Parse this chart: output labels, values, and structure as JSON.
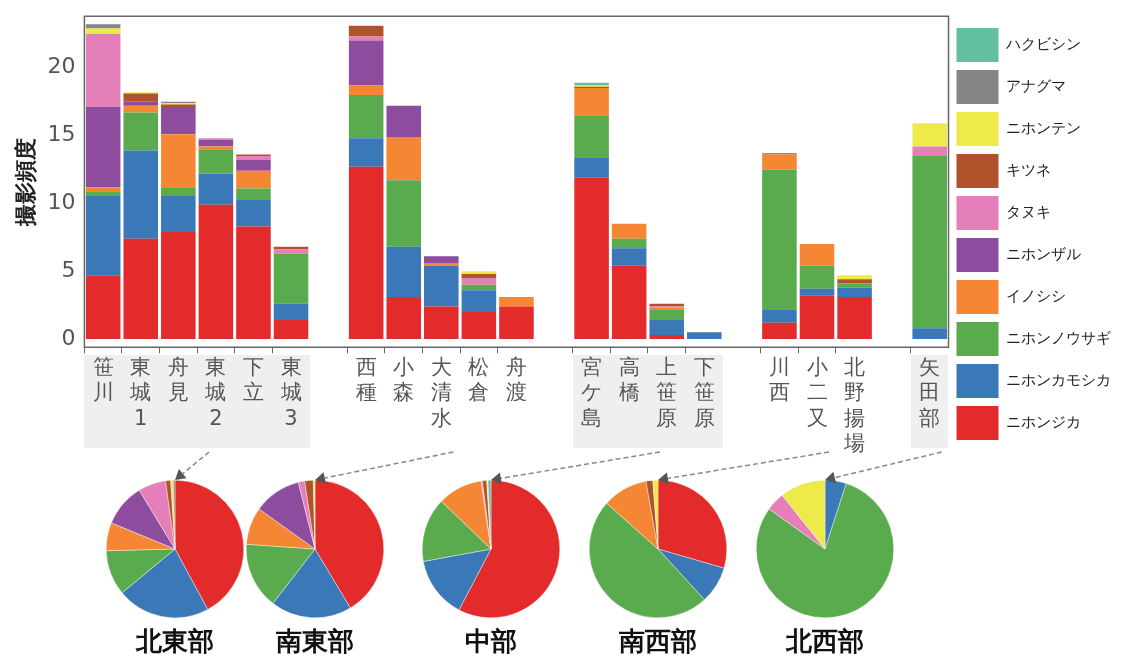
{
  "chart_data": [
    {
      "type": "bar",
      "stacked": true,
      "ylabel": "撮影頻度",
      "legend": "right",
      "grid": false,
      "ylim": [
        -0.6,
        23.8
      ],
      "yticks": [
        0,
        5,
        10,
        15,
        20
      ],
      "categories": [
        "笹川",
        "東城1",
        "舟見",
        "東城2",
        "下立",
        "東城3",
        null,
        "西種",
        "小森",
        "大清水",
        "松倉",
        "舟渡",
        null,
        "宮ケ島",
        "高橋",
        "上笹原",
        "下笹原",
        null,
        "川西",
        "小二又",
        "北野揚場",
        null,
        "矢田部"
      ],
      "series": [
        {
          "name": "ニホンジカ",
          "color": "#e32b2b",
          "values": [
            4.7,
            7.4,
            7.9,
            9.9,
            8.3,
            1.4,
            null,
            12.7,
            3.1,
            2.4,
            2.0,
            2.4,
            null,
            11.9,
            5.4,
            0.3,
            0,
            null,
            1.2,
            3.2,
            3.1,
            null,
            0
          ]
        },
        {
          "name": "ニホンカモシカ",
          "color": "#3a78b8",
          "values": [
            5.9,
            6.5,
            2.7,
            2.3,
            2.0,
            1.2,
            null,
            2.1,
            3.7,
            3.0,
            1.6,
            0,
            null,
            1.5,
            1.3,
            1.1,
            0.5,
            null,
            1.0,
            0.5,
            0.7,
            null,
            0.8
          ]
        },
        {
          "name": "ニホンノウサギ",
          "color": "#5aab4e",
          "values": [
            0.3,
            2.8,
            0.6,
            1.8,
            0.8,
            3.7,
            null,
            3.2,
            4.9,
            0,
            0.4,
            0,
            null,
            3.1,
            0.7,
            0.8,
            0,
            null,
            10.3,
            1.7,
            0.3,
            null,
            12.7
          ]
        },
        {
          "name": "イノシシ",
          "color": "#f58634",
          "values": [
            0.3,
            0.5,
            3.9,
            0.2,
            1.3,
            0,
            null,
            0.7,
            3.2,
            0.2,
            0,
            0.7,
            null,
            2.0,
            1.1,
            0.1,
            0,
            null,
            1.1,
            1.6,
            0,
            null,
            0
          ]
        },
        {
          "name": "ニホンザル",
          "color": "#8e4c9e",
          "values": [
            5.9,
            0.3,
            2.0,
            0.5,
            0.8,
            0,
            null,
            3.3,
            2.3,
            0.5,
            0,
            0,
            null,
            0,
            0,
            0,
            0,
            null,
            0,
            0,
            0,
            null,
            0
          ]
        },
        {
          "name": "タヌキ",
          "color": "#e57fb9",
          "values": [
            5.4,
            0,
            0,
            0.1,
            0.3,
            0.3,
            null,
            0.3,
            0,
            0,
            0.5,
            0,
            null,
            0,
            0,
            0.1,
            0,
            null,
            0,
            0,
            0,
            null,
            0.7
          ]
        },
        {
          "name": "キツネ",
          "color": "#b0532d",
          "values": [
            0,
            0.6,
            0.2,
            0,
            0.1,
            0.2,
            null,
            0.8,
            0,
            0,
            0.3,
            0,
            null,
            0.1,
            0,
            0.2,
            0,
            null,
            0.1,
            0,
            0.3,
            null,
            0
          ]
        },
        {
          "name": "ニホンテン",
          "color": "#eeea4a",
          "values": [
            0.4,
            0.1,
            0.1,
            0,
            0,
            0,
            null,
            0,
            0,
            0,
            0.2,
            0,
            null,
            0.1,
            0,
            0,
            0,
            null,
            0,
            0,
            0.3,
            null,
            1.7
          ]
        },
        {
          "name": "アナグマ",
          "color": "#838587",
          "values": [
            0.3,
            0,
            0.1,
            0,
            0,
            0,
            null,
            0,
            0,
            0,
            0,
            0,
            null,
            0,
            0,
            0,
            0,
            null,
            0,
            0,
            0,
            null,
            0
          ]
        },
        {
          "name": "ハクビシン",
          "color": "#62bfa2",
          "values": [
            0,
            0,
            0,
            0,
            0,
            0,
            null,
            0,
            0,
            0,
            0,
            0,
            null,
            0.2,
            0,
            0,
            0,
            null,
            0,
            0,
            0,
            null,
            0
          ]
        }
      ]
    },
    {
      "type": "pie",
      "title": "北東部",
      "categories": [
        null,
        null,
        null,
        null,
        null,
        null,
        null,
        null,
        null
      ],
      "values": [
        42.1,
        21.9,
        10.6,
        6.6,
        10.1,
        6.5,
        1.2,
        0.6,
        0.4
      ],
      "colors": [
        "#e32b2b",
        "#3a78b8",
        "#5aab4e",
        "#f58634",
        "#8e4c9e",
        "#e57fb9",
        "#b0532d",
        "#eeea4a",
        "#838587"
      ]
    },
    {
      "type": "pie",
      "title": "南東部",
      "categories": [
        null,
        null,
        null,
        null,
        null,
        null,
        null,
        null
      ],
      "values": [
        41.4,
        19.1,
        15.6,
        8.8,
        11.2,
        1.5,
        2.0,
        0.4
      ],
      "colors": [
        "#e32b2b",
        "#3a78b8",
        "#5aab4e",
        "#f58634",
        "#8e4c9e",
        "#e57fb9",
        "#b0532d",
        "#eeea4a"
      ]
    },
    {
      "type": "pie",
      "title": "中部",
      "categories": [
        null,
        null,
        null,
        null,
        null,
        null,
        null,
        null
      ],
      "values": [
        57.7,
        14.4,
        15.1,
        10.5,
        0.3,
        1.0,
        0.3,
        0.7
      ],
      "colors": [
        "#e32b2b",
        "#3a78b8",
        "#5aab4e",
        "#f58634",
        "#e57fb9",
        "#b0532d",
        "#eeea4a",
        "#62bfa2"
      ]
    },
    {
      "type": "pie",
      "title": "南西部",
      "categories": [
        null,
        null,
        null,
        null,
        null,
        null
      ],
      "values": [
        29.5,
        8.7,
        48.4,
        10.6,
        1.6,
        1.2
      ],
      "colors": [
        "#e32b2b",
        "#3a78b8",
        "#5aab4e",
        "#f58634",
        "#b0532d",
        "#eeea4a"
      ]
    },
    {
      "type": "pie",
      "title": "北西部",
      "categories": [
        null,
        null,
        null,
        null
      ],
      "values": [
        5.0,
        79.9,
        4.4,
        10.7
      ],
      "colors": [
        "#3a78b8",
        "#5aab4e",
        "#e57fb9",
        "#eeea4a"
      ]
    }
  ]
}
